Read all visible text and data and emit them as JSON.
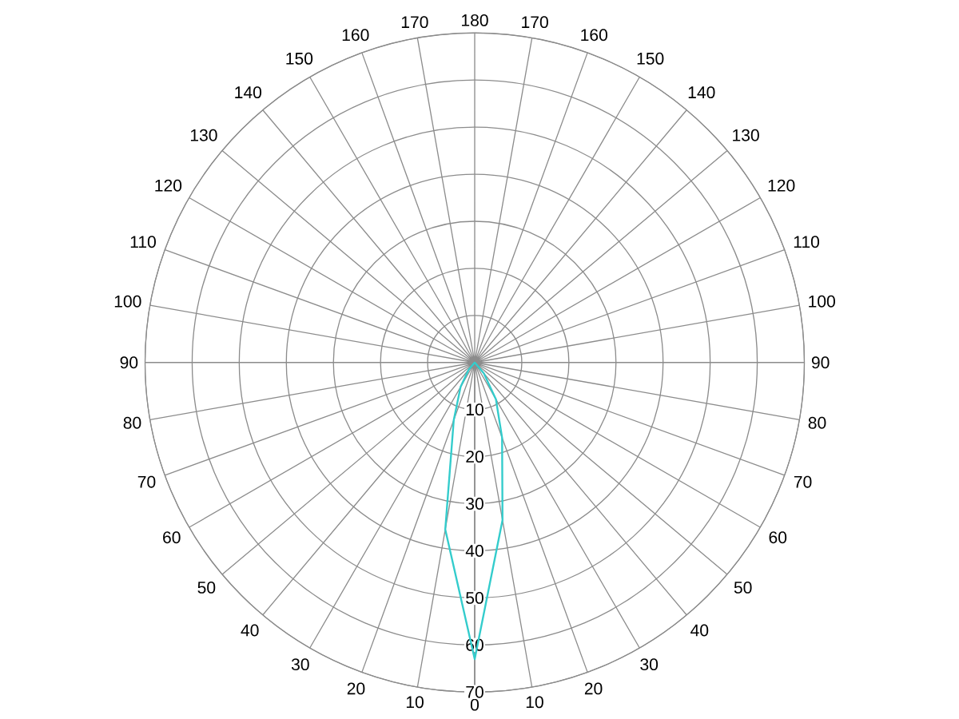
{
  "chart_data": {
    "type": "radar",
    "categories": [
      "180",
      "170",
      "160",
      "150",
      "140",
      "130",
      "120",
      "110",
      "100",
      "90",
      "80",
      "70",
      "60",
      "50",
      "40",
      "30",
      "20",
      "10",
      "0",
      "10",
      "20",
      "30",
      "40",
      "50",
      "60",
      "70",
      "80",
      "90",
      "100",
      "110",
      "120",
      "130",
      "140",
      "150",
      "160",
      "170"
    ],
    "series": [
      {
        "color": "#33cccc",
        "values": [
          0,
          0,
          0,
          0,
          0,
          0,
          0,
          0,
          0,
          0,
          0,
          0,
          0,
          0,
          3,
          9,
          17,
          34,
          63,
          36,
          13,
          6,
          2,
          0,
          0,
          0,
          0,
          0,
          0,
          0,
          0,
          0,
          0,
          0,
          0,
          0
        ]
      }
    ],
    "ylim": [
      0,
      70
    ],
    "yticks": [
      10,
      20,
      30,
      40,
      50,
      60,
      70
    ],
    "grid": true
  }
}
